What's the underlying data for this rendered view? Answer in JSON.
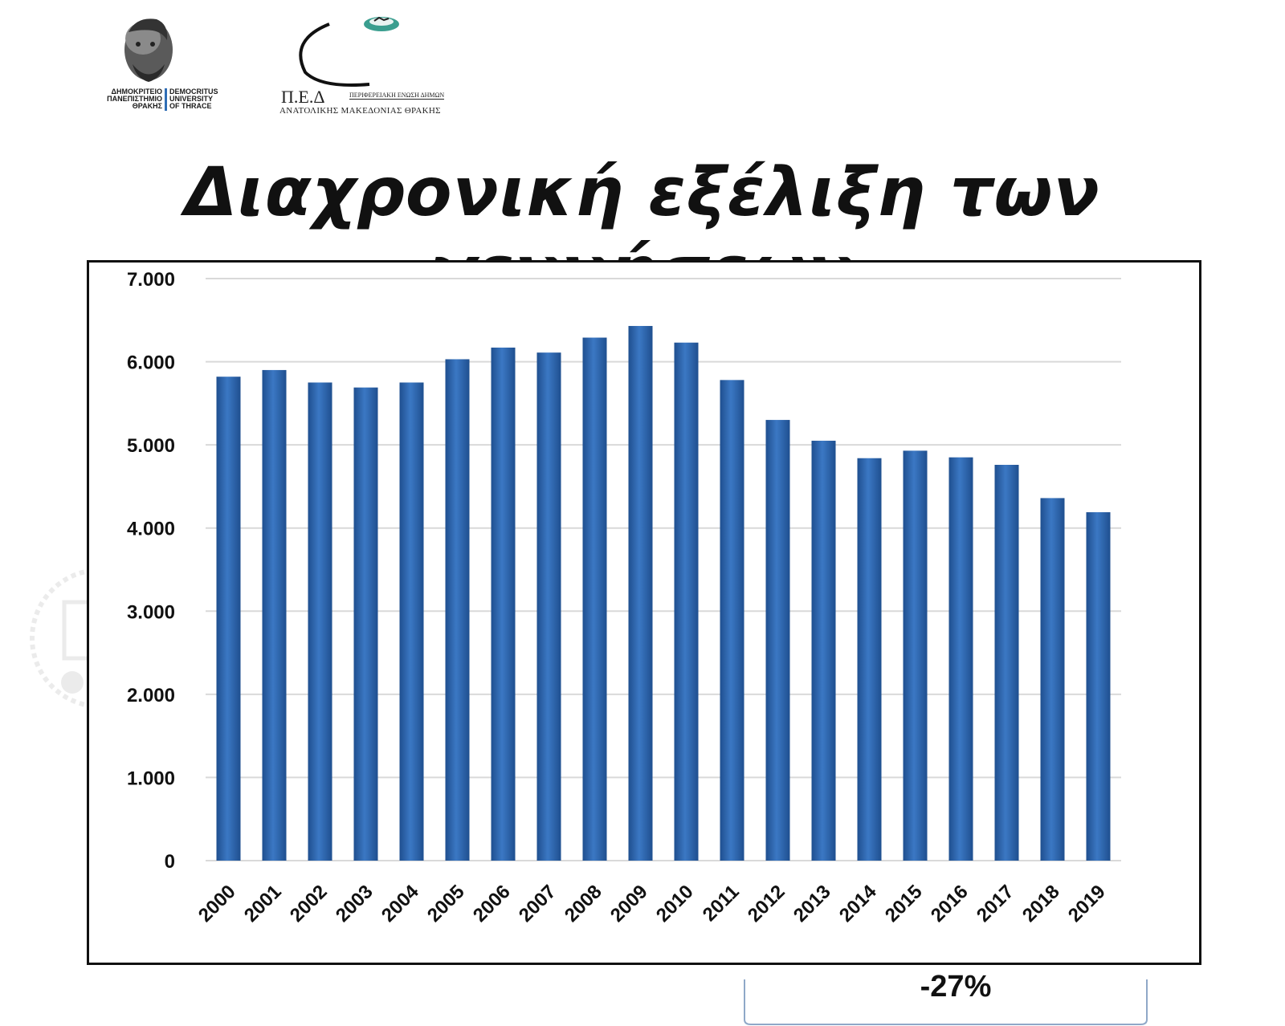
{
  "logos": {
    "duth_greek": [
      "ΔΗΜΟΚΡΙΤΕΙΟ",
      "ΠΑΝΕΠΙΣΤΗΜΙΟ",
      "ΘΡΑΚΗΣ"
    ],
    "duth_english": [
      "DEMOCRITUS",
      "UNIVERSITY",
      "OF THRACE"
    ],
    "ped_name": "Π.Ε.Δ",
    "ped_subtitle": "ΠΕΡΙΦΕΡΕΙΑΚΗ ΕΝΩΣΗ ΔΗΜΩΝ",
    "ped_region": "ΑΝΑΤΟΛΙΚΗΣ ΜΑΚΕΔΟΝΙΑΣ ΘΡΑΚΗΣ"
  },
  "title": "Διαχρονική εξέλιξη των γεννήσεων",
  "colors": {
    "bar": "#3b78c4",
    "bar_dark": "#1f4f8f",
    "grid": "#d9d9d9",
    "frame": "#111111"
  },
  "chart_data": {
    "type": "bar",
    "categories": [
      "2000",
      "2001",
      "2002",
      "2003",
      "2004",
      "2005",
      "2006",
      "2007",
      "2008",
      "2009",
      "2010",
      "2011",
      "2012",
      "2013",
      "2014",
      "2015",
      "2016",
      "2017",
      "2018",
      "2019"
    ],
    "values": [
      5820,
      5900,
      5750,
      5690,
      5750,
      6030,
      6170,
      6110,
      6290,
      6430,
      6230,
      5780,
      5300,
      5050,
      4840,
      4930,
      4850,
      4760,
      4360,
      4190
    ],
    "yticks": [
      "0",
      "1.000",
      "2.000",
      "3.000",
      "4.000",
      "5.000",
      "6.000",
      "7.000"
    ],
    "ylim": [
      0,
      7000
    ],
    "grid": true,
    "xlabel": "",
    "ylabel": ""
  },
  "annotation": {
    "change": "-27%"
  }
}
